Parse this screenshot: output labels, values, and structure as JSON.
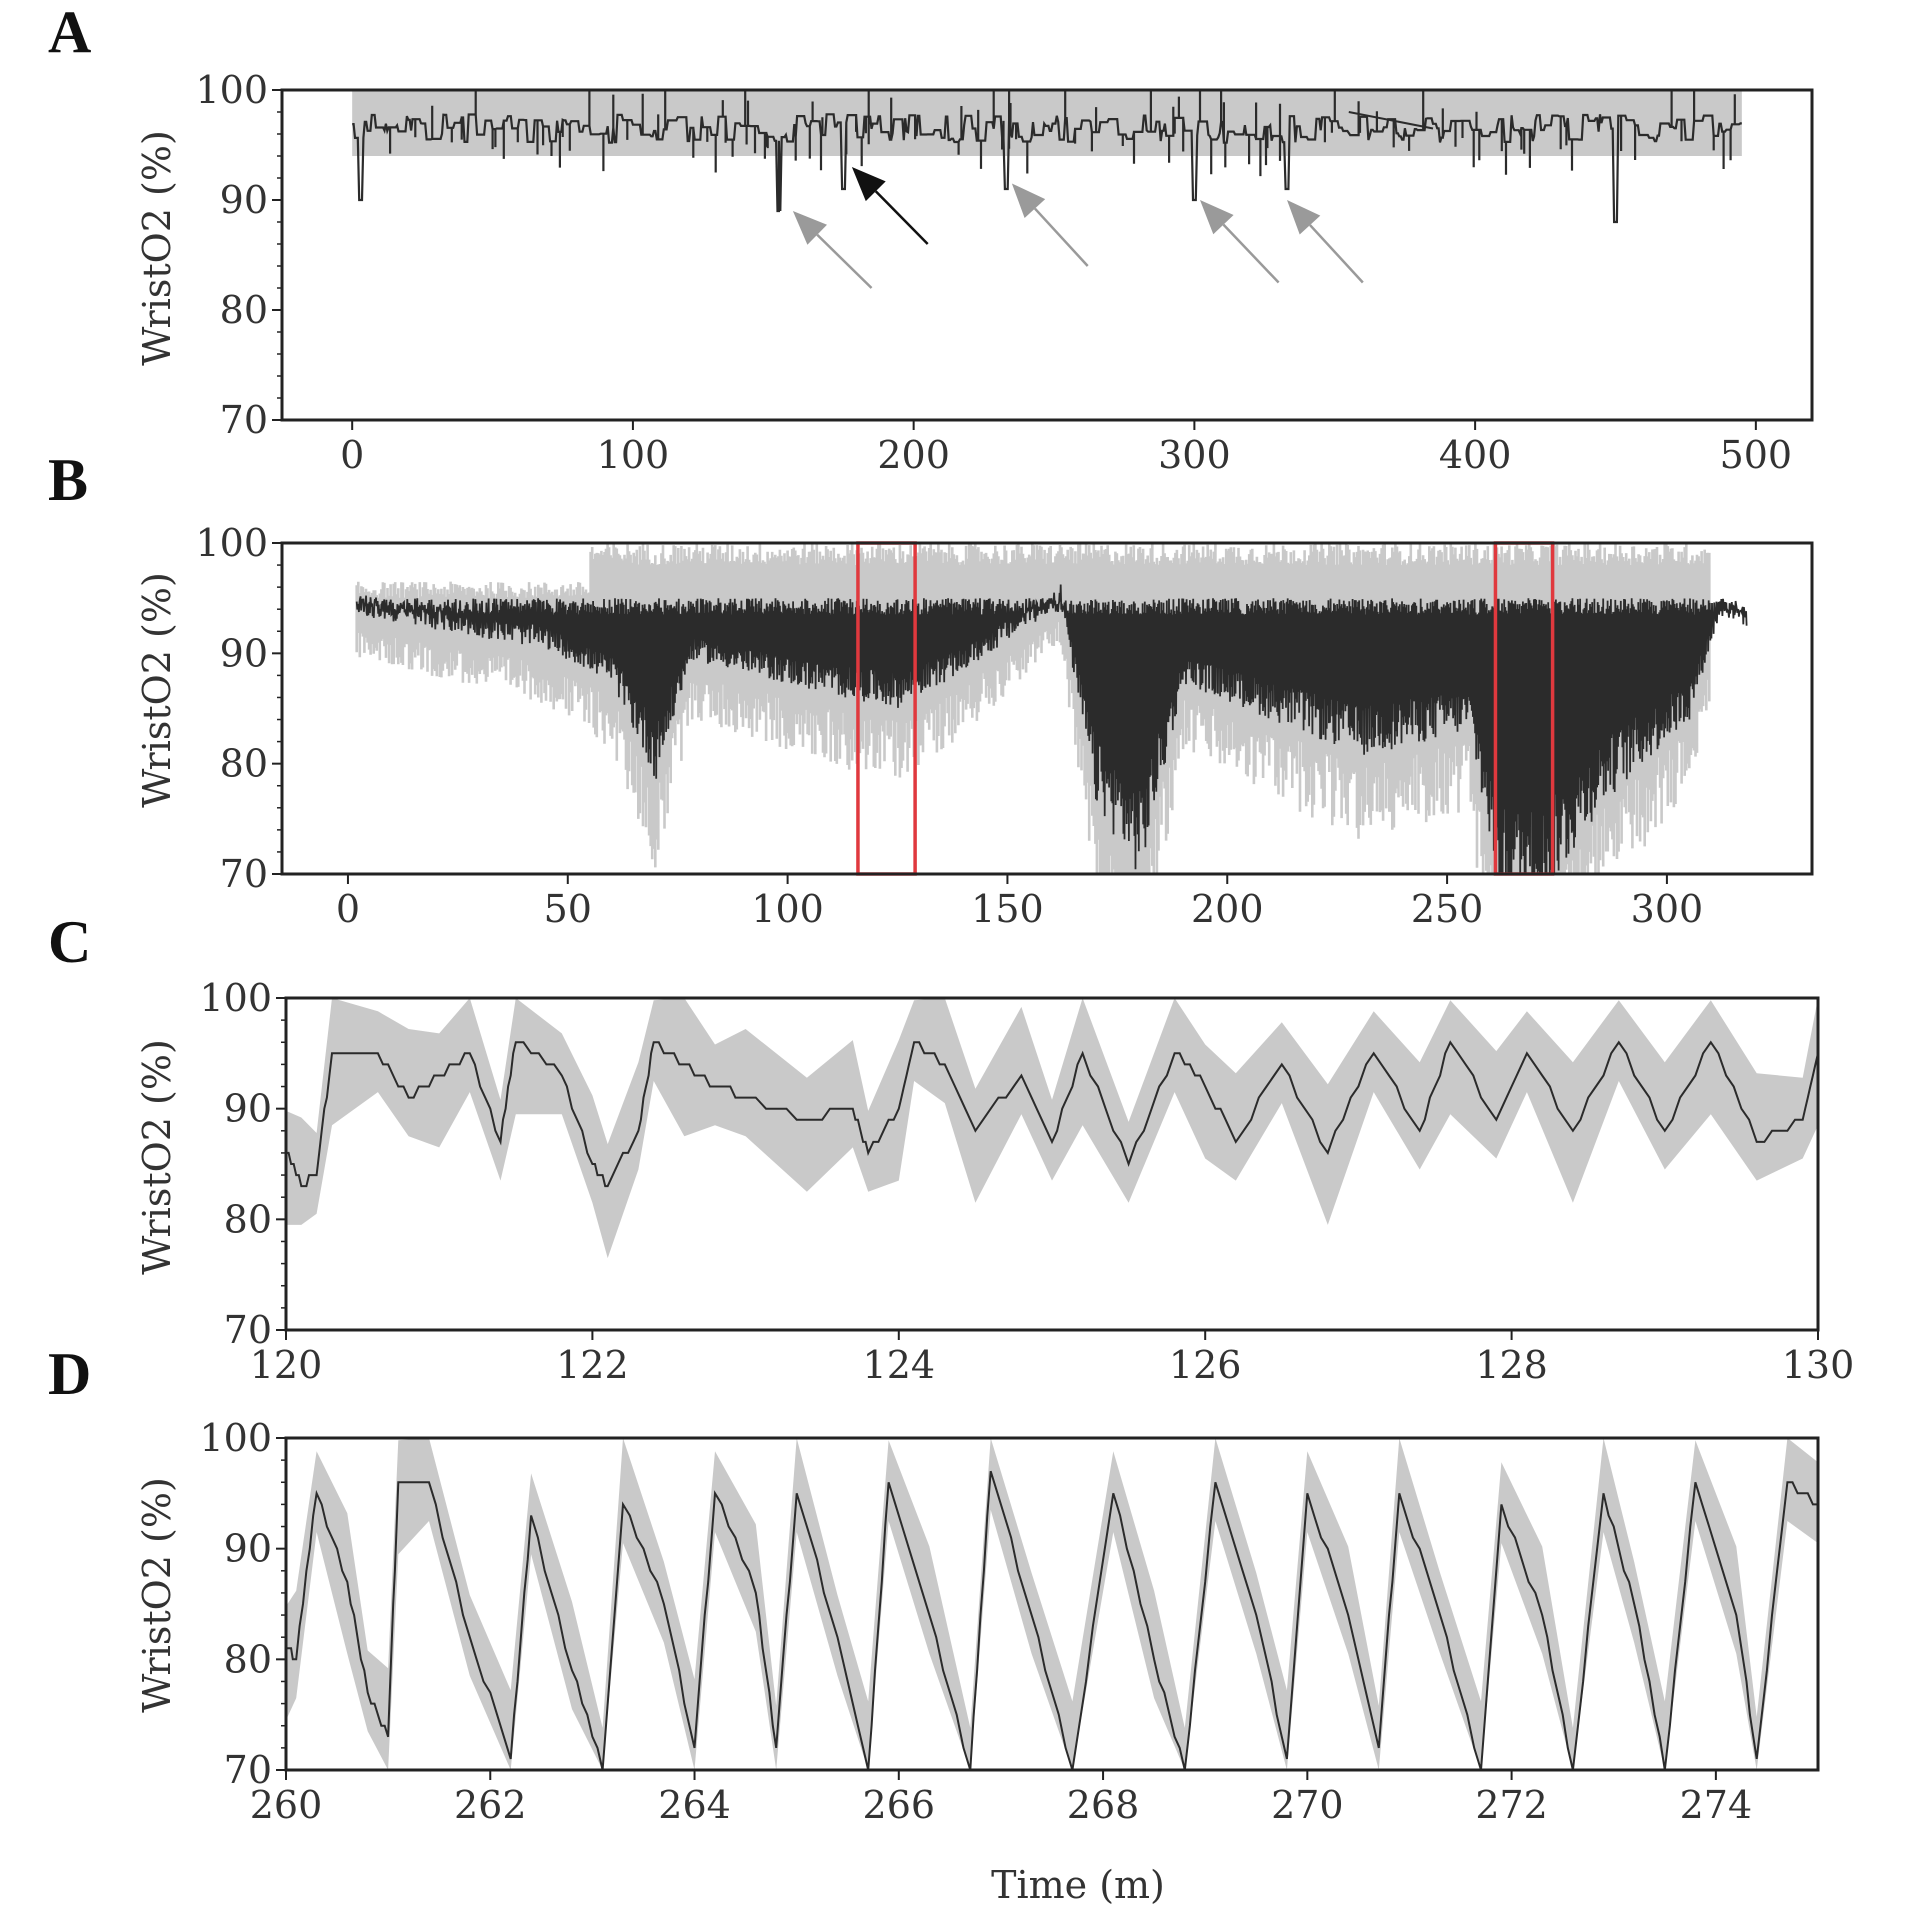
{
  "colors": {
    "band": "#c9c9c9",
    "trace": "#2b2b2b",
    "highlight": "#e0393e",
    "arrow_black": "#111111",
    "arrow_gray": "#9a9a9a"
  },
  "chart_data": [
    {
      "id": "A",
      "panel_label": "A",
      "type": "line",
      "ylabel": "WristO2 (%)",
      "xlabel": "",
      "xlim": [
        -25,
        520
      ],
      "ylim": [
        70,
        100
      ],
      "xticks": [
        0,
        100,
        200,
        300,
        400,
        500
      ],
      "xtick_labels": [
        "0",
        "100",
        "200",
        "300",
        "400",
        "500"
      ],
      "yticks": [
        70,
        80,
        90,
        100
      ],
      "ytick_labels": [
        "70",
        "80",
        "90",
        "100"
      ],
      "series": [
        {
          "name": "WristO2 range",
          "kind": "band",
          "x_range": [
            0,
            495
          ],
          "lower": 94,
          "upper": 100,
          "color": "band"
        },
        {
          "name": "WristO2",
          "kind": "trace",
          "x_range": [
            0,
            495
          ],
          "baseline": 96.5,
          "noise": 1.3,
          "color": "trace",
          "dips": [
            [
              3,
              90
            ],
            [
              152,
              89
            ],
            [
              175,
              91
            ],
            [
              233,
              91
            ],
            [
              300,
              90
            ],
            [
              333,
              91
            ],
            [
              450,
              88
            ]
          ]
        }
      ],
      "annotations": [
        {
          "type": "arrow",
          "color": "gray",
          "tip": [
            157,
            89
          ],
          "tail": [
            185,
            82
          ]
        },
        {
          "type": "arrow",
          "color": "black",
          "tip": [
            178,
            93
          ],
          "tail": [
            205,
            86
          ]
        },
        {
          "type": "arrow",
          "color": "gray",
          "tip": [
            235,
            91.5
          ],
          "tail": [
            262,
            84
          ]
        },
        {
          "type": "arrow",
          "color": "gray",
          "tip": [
            302,
            90
          ],
          "tail": [
            330,
            82.5
          ]
        },
        {
          "type": "arrow",
          "color": "gray",
          "tip": [
            333,
            90
          ],
          "tail": [
            360,
            82.5
          ]
        }
      ]
    },
    {
      "id": "B",
      "panel_label": "B",
      "type": "line",
      "ylabel": "WristO2 (%)",
      "xlabel": "",
      "xlim": [
        -15,
        333
      ],
      "ylim": [
        70,
        100
      ],
      "xticks": [
        0,
        50,
        100,
        150,
        200,
        250,
        300
      ],
      "xtick_labels": [
        "0",
        "50",
        "100",
        "150",
        "200",
        "250",
        "300"
      ],
      "yticks": [
        70,
        80,
        90,
        100
      ],
      "ytick_labels": [
        "70",
        "80",
        "90",
        "100"
      ],
      "series": [
        {
          "name": "WristO2 range",
          "kind": "band",
          "x_range": [
            2,
            310
          ],
          "color": "band"
        },
        {
          "name": "WristO2",
          "kind": "trace",
          "x_range": [
            2,
            318
          ],
          "color": "trace",
          "depth_profile": [
            [
              2,
              94
            ],
            [
              45,
              91
            ],
            [
              60,
              88
            ],
            [
              70,
              80
            ],
            [
              78,
              90
            ],
            [
              110,
              87
            ],
            [
              125,
              86
            ],
            [
              140,
              89
            ],
            [
              162,
              95
            ],
            [
              170,
              78
            ],
            [
              180,
              72
            ],
            [
              190,
              88
            ],
            [
              210,
              85
            ],
            [
              230,
              82
            ],
            [
              255,
              84
            ],
            [
              262,
              70
            ],
            [
              272,
              70
            ],
            [
              285,
              78
            ],
            [
              305,
              85
            ],
            [
              312,
              94
            ],
            [
              318,
              93
            ]
          ]
        }
      ],
      "highlight_windows": [
        [
          116,
          129
        ],
        [
          261,
          274
        ]
      ]
    },
    {
      "id": "C",
      "panel_label": "C",
      "type": "line",
      "ylabel": "WristO2 (%)",
      "xlabel": "",
      "xlim": [
        120,
        130
      ],
      "ylim": [
        70,
        100
      ],
      "xticks": [
        120,
        122,
        124,
        126,
        128,
        130
      ],
      "xtick_labels": [
        "120",
        "122",
        "124",
        "126",
        "128",
        "130"
      ],
      "yticks": [
        70,
        80,
        90,
        100
      ],
      "ytick_labels": [
        "70",
        "80",
        "90",
        "100"
      ],
      "series": [
        {
          "name": "WristO2",
          "kind": "trace",
          "color": "trace",
          "band_spread": 5,
          "points": [
            [
              120,
              86
            ],
            [
              120.1,
              83
            ],
            [
              120.2,
              84
            ],
            [
              120.3,
              95
            ],
            [
              120.6,
              95
            ],
            [
              120.8,
              91
            ],
            [
              121,
              93
            ],
            [
              121.2,
              95
            ],
            [
              121.4,
              87
            ],
            [
              121.5,
              96
            ],
            [
              121.8,
              93
            ],
            [
              122,
              85
            ],
            [
              122.1,
              83
            ],
            [
              122.3,
              88
            ],
            [
              122.4,
              96
            ],
            [
              122.6,
              94
            ],
            [
              122.8,
              92
            ],
            [
              123,
              91
            ],
            [
              123.4,
              89
            ],
            [
              123.7,
              90
            ],
            [
              123.8,
              86
            ],
            [
              124,
              90
            ],
            [
              124.1,
              96
            ],
            [
              124.3,
              94
            ],
            [
              124.5,
              88
            ],
            [
              124.8,
              93
            ],
            [
              125,
              87
            ],
            [
              125.2,
              95
            ],
            [
              125.5,
              85
            ],
            [
              125.8,
              95
            ],
            [
              126,
              92
            ],
            [
              126.2,
              87
            ],
            [
              126.5,
              94
            ],
            [
              126.8,
              86
            ],
            [
              127.1,
              95
            ],
            [
              127.4,
              88
            ],
            [
              127.6,
              96
            ],
            [
              127.9,
              89
            ],
            [
              128.1,
              95
            ],
            [
              128.4,
              88
            ],
            [
              128.7,
              96
            ],
            [
              129,
              88
            ],
            [
              129.3,
              96
            ],
            [
              129.6,
              87
            ],
            [
              129.9,
              89
            ],
            [
              130,
              95
            ]
          ]
        }
      ]
    },
    {
      "id": "D",
      "panel_label": "D",
      "type": "line",
      "ylabel": "WristO2 (%)",
      "xlabel": "Time (m)",
      "xlim": [
        260,
        275
      ],
      "ylim": [
        70,
        100
      ],
      "xticks": [
        260,
        262,
        264,
        266,
        268,
        270,
        272,
        274
      ],
      "xtick_labels": [
        "260",
        "262",
        "264",
        "266",
        "268",
        "270",
        "272",
        "274"
      ],
      "yticks": [
        70,
        80,
        90,
        100
      ],
      "ytick_labels": [
        "70",
        "80",
        "90",
        "100"
      ],
      "series": [
        {
          "name": "WristO2",
          "kind": "trace",
          "color": "trace",
          "band_spread": 5,
          "points": [
            [
              260,
              81
            ],
            [
              260.1,
              80
            ],
            [
              260.3,
              95
            ],
            [
              260.6,
              87
            ],
            [
              260.8,
              77
            ],
            [
              261,
              73
            ],
            [
              261.1,
              96
            ],
            [
              261.4,
              96
            ],
            [
              261.8,
              82
            ],
            [
              262.2,
              71
            ],
            [
              262.4,
              93
            ],
            [
              262.8,
              79
            ],
            [
              263.1,
              70
            ],
            [
              263.3,
              94
            ],
            [
              263.7,
              85
            ],
            [
              264,
              72
            ],
            [
              264.2,
              95
            ],
            [
              264.6,
              86
            ],
            [
              264.8,
              72
            ],
            [
              265,
              95
            ],
            [
              265.4,
              82
            ],
            [
              265.7,
              70
            ],
            [
              265.9,
              96
            ],
            [
              266.3,
              84
            ],
            [
              266.7,
              70
            ],
            [
              266.9,
              97
            ],
            [
              267.3,
              84
            ],
            [
              267.7,
              70
            ],
            [
              268.1,
              95
            ],
            [
              268.5,
              80
            ],
            [
              268.8,
              70
            ],
            [
              269.1,
              96
            ],
            [
              269.5,
              84
            ],
            [
              269.8,
              71
            ],
            [
              270,
              95
            ],
            [
              270.4,
              84
            ],
            [
              270.7,
              72
            ],
            [
              270.9,
              95
            ],
            [
              271.3,
              84
            ],
            [
              271.7,
              70
            ],
            [
              271.9,
              94
            ],
            [
              272.3,
              84
            ],
            [
              272.6,
              70
            ],
            [
              272.9,
              95
            ],
            [
              273.2,
              85
            ],
            [
              273.5,
              70
            ],
            [
              273.8,
              96
            ],
            [
              274.2,
              84
            ],
            [
              274.4,
              71
            ],
            [
              274.7,
              96
            ],
            [
              275,
              94
            ]
          ]
        }
      ]
    }
  ]
}
